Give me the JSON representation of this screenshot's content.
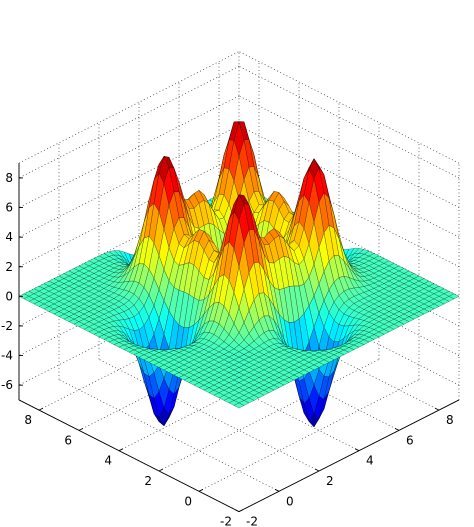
{
  "chart_data": {
    "type": "surface3d",
    "title": "",
    "xlabel": "",
    "ylabel": "",
    "zlabel": "",
    "colormap": "jet",
    "grid": true,
    "box": true,
    "view": "isometric (-45 azimuth)",
    "xlim": [
      -2,
      9
    ],
    "ylim": [
      -2,
      9
    ],
    "zlim": [
      -7,
      9
    ],
    "x_ticks": [
      {
        "value": -2,
        "label": "-2"
      },
      {
        "value": 0,
        "label": "0"
      },
      {
        "value": 2,
        "label": "2"
      },
      {
        "value": 4,
        "label": "4"
      },
      {
        "value": 6,
        "label": "6"
      },
      {
        "value": 8,
        "label": "8"
      }
    ],
    "y_ticks": [
      {
        "value": -2,
        "label": "-2"
      },
      {
        "value": 0,
        "label": "0"
      },
      {
        "value": 2,
        "label": "2"
      },
      {
        "value": 4,
        "label": "4"
      },
      {
        "value": 6,
        "label": "6"
      },
      {
        "value": 8,
        "label": "8"
      }
    ],
    "z_ticks": [
      {
        "value": -6,
        "label": "-6"
      },
      {
        "value": -4,
        "label": "-4"
      },
      {
        "value": -2,
        "label": "-2"
      },
      {
        "value": 0,
        "label": "0"
      },
      {
        "value": 2,
        "label": "2"
      },
      {
        "value": 4,
        "label": "4"
      },
      {
        "value": 6,
        "label": "6"
      },
      {
        "value": 8,
        "label": "8"
      }
    ],
    "surface": {
      "domain_x": [
        -2,
        9
      ],
      "domain_y": [
        -2,
        9
      ],
      "grid_points": 45,
      "peaks": [
        {
          "x": 2.3,
          "y": 6.0,
          "z": 8.5
        },
        {
          "x": 6.1,
          "y": 6.1,
          "z": 8.5
        },
        {
          "x": 2.3,
          "y": 2.2,
          "z": 8.5
        },
        {
          "x": 6.0,
          "y": 2.2,
          "z": 8.4
        },
        {
          "x": 4.0,
          "y": 6.0,
          "z": 5.0
        },
        {
          "x": 2.3,
          "y": 4.1,
          "z": 5.0
        },
        {
          "x": 6.0,
          "y": 4.1,
          "z": 5.0
        },
        {
          "x": 4.0,
          "y": 2.2,
          "z": 5.0
        }
      ],
      "troughs": [
        {
          "x": 4.0,
          "y": 4.1,
          "z": -7.0
        },
        {
          "x": 0.3,
          "y": 4.1,
          "z": -7.0
        },
        {
          "x": 4.0,
          "y": 0.3,
          "z": -7.0
        },
        {
          "x": 7.8,
          "y": 4.1,
          "z": -6.0
        },
        {
          "x": 4.0,
          "y": 7.9,
          "z": -6.0
        }
      ]
    }
  }
}
